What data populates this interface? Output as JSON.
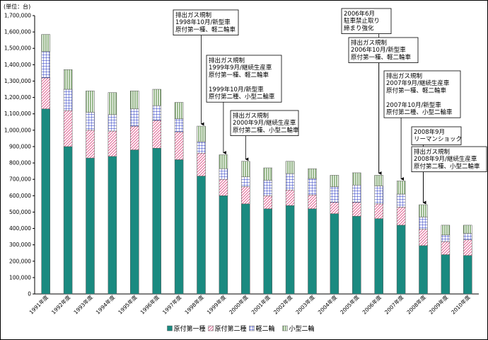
{
  "chart_data": {
    "type": "bar",
    "stacked": true,
    "unit_label": "(単位：台)",
    "categories": [
      "1991年度",
      "1992年度",
      "1993年度",
      "1994年度",
      "1995年度",
      "1996年度",
      "1997年度",
      "1998年度",
      "1999年度",
      "2000年度",
      "2001年度",
      "2002年度",
      "2003年度",
      "2004年度",
      "2005年度",
      "2006年度",
      "2007年度",
      "2008年度",
      "2009年度",
      "2010年度"
    ],
    "series": [
      {
        "name": "原付第一種",
        "color": "#1a8a80",
        "pattern": "solid",
        "values": [
          1130000,
          900000,
          830000,
          840000,
          880000,
          890000,
          820000,
          720000,
          600000,
          550000,
          520000,
          540000,
          520000,
          490000,
          475000,
          460000,
          420000,
          295000,
          240000,
          235000
        ]
      },
      {
        "name": "原付第二種",
        "color": "#e06090",
        "pattern": "diagonal",
        "values": [
          190000,
          220000,
          170000,
          155000,
          145000,
          170000,
          170000,
          140000,
          100000,
          105000,
          80000,
          95000,
          85000,
          70000,
          85000,
          90000,
          110000,
          100000,
          80000,
          95000
        ]
      },
      {
        "name": "軽二輪",
        "color": "#2030c0",
        "pattern": "grid",
        "values": [
          160000,
          130000,
          110000,
          100000,
          105000,
          90000,
          80000,
          70000,
          65000,
          60000,
          95000,
          100000,
          100000,
          95000,
          105000,
          110000,
          80000,
          75000,
          40000,
          40000
        ]
      },
      {
        "name": "小型二輪",
        "color": "#6b9a5a",
        "pattern": "vertical",
        "values": [
          105000,
          120000,
          130000,
          135000,
          110000,
          100000,
          100000,
          95000,
          85000,
          95000,
          75000,
          75000,
          60000,
          70000,
          75000,
          65000,
          80000,
          75000,
          60000,
          50000
        ]
      }
    ],
    "ylim": [
      0,
      1700000
    ],
    "yticks": [
      "0",
      "100,000",
      "200,000",
      "300,000",
      "400,000",
      "500,000",
      "600,000",
      "700,000",
      "800,000",
      "900,000",
      "1,000,000",
      "1,100,000",
      "1,200,000",
      "1,300,000",
      "1,400,000",
      "1,500,000",
      "1,600,000",
      "1,700,000"
    ],
    "grid": false,
    "legend_position": "bottom-center",
    "annotations": [
      {
        "category": "1998年度",
        "lines": [
          "排出ガス規制",
          "1998年10月/新型車",
          "原付第一種、軽二輪車"
        ]
      },
      {
        "category": "1999年度",
        "lines": [
          "排出ガス規制",
          "1999年9月/継続生産車",
          "原付第一種、軽二輪車",
          "",
          "1999年10月/新型車",
          "原付第二種、小型二輪車"
        ]
      },
      {
        "category": "2000年度",
        "lines": [
          "排出ガス規制",
          "2000年9月/継続生産車",
          "原付第二種、小型二輪車"
        ]
      },
      {
        "category": "2006年度",
        "lines": [
          "2006年6月",
          "駐車禁止取り",
          "締まり強化"
        ]
      },
      {
        "category": "2006年度",
        "lines": [
          "排出ガス規制",
          "2006年10月/新型車",
          "原付第一種、軽二輪車"
        ]
      },
      {
        "category": "2007年度",
        "lines": [
          "排出ガス規制",
          "2007年9月/継続生産車",
          "原付第一種、軽二輪車",
          "",
          "2007年10月/新型車",
          "原付第二種、小型二輪車"
        ]
      },
      {
        "category": "2008年度",
        "lines": [
          "2008年9月",
          "リーマンショック"
        ]
      },
      {
        "category": "2008年度",
        "lines": [
          "排出ガス規制",
          "2008年9月/継続生産車",
          "原付第二種、小型二輪車"
        ]
      }
    ]
  }
}
